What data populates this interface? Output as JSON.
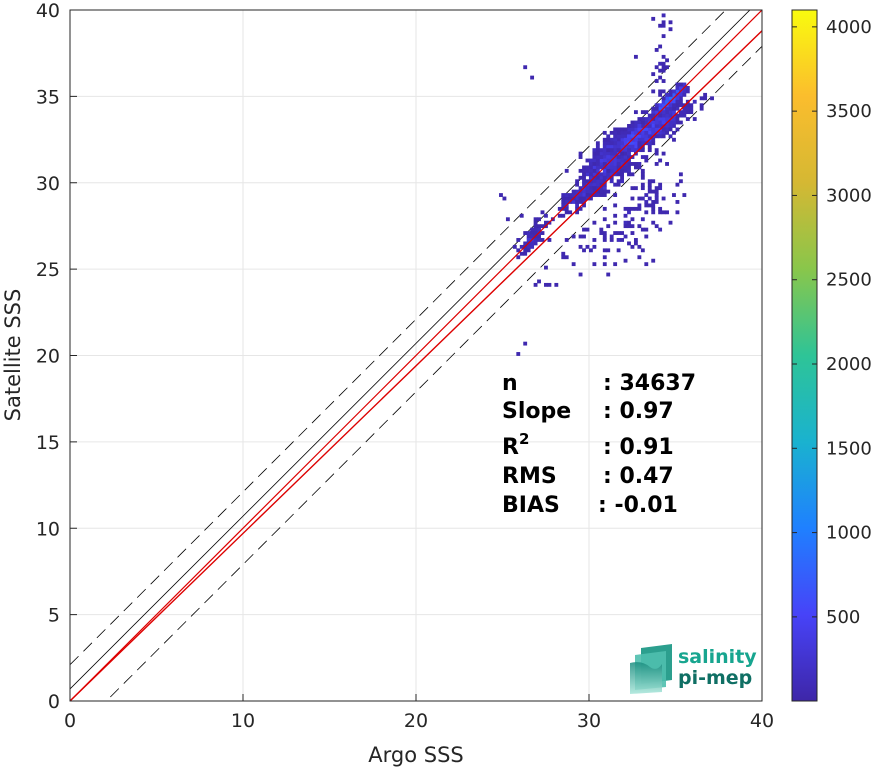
{
  "chart_data": {
    "type": "heatmap",
    "title": "",
    "xlabel": "Argo SSS",
    "ylabel": "Satellite SSS",
    "xlim": [
      0,
      40
    ],
    "ylim": [
      0,
      40
    ],
    "x_ticks": [
      "0",
      "10",
      "20",
      "30",
      "40"
    ],
    "y_ticks": [
      "0",
      "5",
      "10",
      "15",
      "20",
      "25",
      "30",
      "35",
      "40"
    ],
    "grid": true,
    "colorbar": {
      "range": [
        1,
        4100
      ],
      "ticks": [
        "500",
        "1000",
        "1500",
        "2000",
        "2500",
        "3000",
        "3500",
        "4000"
      ],
      "colormap": "parula",
      "colors": [
        "#3e26a8",
        "#4743f8",
        "#1f80ff",
        "#1ab2cf",
        "#2ec497",
        "#89c64b",
        "#d5b833",
        "#fbbd2d",
        "#f9fb0e"
      ]
    },
    "reference_lines": {
      "identity_color": "#000000",
      "identity_offset": 0.7,
      "dashed_offset": 2.1,
      "fit_color": "#dd0000",
      "fit_slope": 0.97,
      "fit_intercept": 0.0
    },
    "clusters": [
      {
        "x": 33.0,
        "y": 32.8,
        "sx": 1.25,
        "sy": 0.8,
        "rho": 0.85,
        "n": 900
      },
      {
        "x": 34.7,
        "y": 34.8,
        "sx": 0.5,
        "sy": 0.45,
        "rho": 0.9,
        "n": 320
      },
      {
        "x": 31.0,
        "y": 30.9,
        "sx": 0.85,
        "sy": 0.7,
        "rho": 0.5,
        "n": 380
      },
      {
        "x": 29.6,
        "y": 29.3,
        "sx": 0.6,
        "sy": 0.45,
        "rho": 0.7,
        "n": 120
      },
      {
        "x": 26.8,
        "y": 26.9,
        "sx": 0.45,
        "sy": 0.45,
        "rho": 0.8,
        "n": 80
      },
      {
        "x": 31.0,
        "y": 26.8,
        "sx": 1.6,
        "sy": 0.8,
        "rho": 0.1,
        "n": 70
      },
      {
        "x": 33.5,
        "y": 29.0,
        "sx": 1.0,
        "sy": 0.9,
        "rho": 0.2,
        "n": 70
      },
      {
        "x": 34.2,
        "y": 37.0,
        "sx": 0.3,
        "sy": 1.8,
        "rho": 0.0,
        "n": 35
      }
    ],
    "scatter_outliers": [
      [
        25.9,
        20.1
      ],
      [
        26.3,
        20.6
      ],
      [
        26.8,
        24.0
      ],
      [
        27.0,
        24.3
      ],
      [
        27.5,
        24.2
      ],
      [
        28.1,
        24.0
      ],
      [
        27.7,
        24.2
      ],
      [
        25.1,
        29.0
      ],
      [
        24.9,
        29.4
      ],
      [
        25.3,
        27.9
      ],
      [
        26.0,
        28.0
      ],
      [
        26.9,
        27.8
      ],
      [
        25.8,
        26.6
      ],
      [
        26.4,
        36.6
      ],
      [
        26.6,
        36.0
      ],
      [
        33.6,
        39.5
      ],
      [
        34.2,
        39.8
      ],
      [
        34.3,
        38.5
      ],
      [
        32.8,
        37.3
      ],
      [
        32.6,
        34.0
      ],
      [
        35.2,
        30.0
      ],
      [
        35.1,
        28.3
      ],
      [
        34.6,
        27.7
      ],
      [
        33.2,
        26.8
      ],
      [
        32.6,
        26.6
      ],
      [
        31.6,
        26.7
      ],
      [
        30.8,
        25.3
      ],
      [
        31.0,
        24.7
      ],
      [
        29.0,
        25.4
      ],
      [
        28.7,
        26.6
      ]
    ],
    "stats": [
      {
        "label": "n",
        "value": ": 34637"
      },
      {
        "label": "Slope",
        "value": ": 0.97"
      },
      {
        "label": "R",
        "sup": "2",
        "value": ": 0.91"
      },
      {
        "label": "RMS",
        "value": ": 0.47"
      },
      {
        "label": "BIAS",
        "value": ": -0.01"
      }
    ]
  },
  "logo": {
    "line1": "salinity",
    "line2": "pi-mep"
  }
}
